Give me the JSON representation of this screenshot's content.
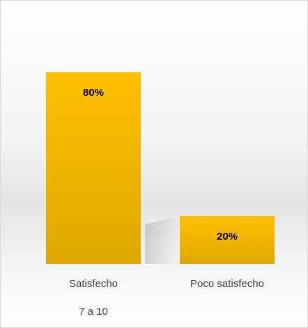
{
  "chart_data": {
    "type": "bar",
    "categories": [
      "Satisfecho",
      "Poco satisfecho"
    ],
    "subcategories": [
      "7 a 10",
      null
    ],
    "values": [
      80,
      20
    ],
    "value_labels": [
      "80%",
      "20%"
    ],
    "color": "#ffc000",
    "ylim": [
      0,
      100
    ]
  }
}
